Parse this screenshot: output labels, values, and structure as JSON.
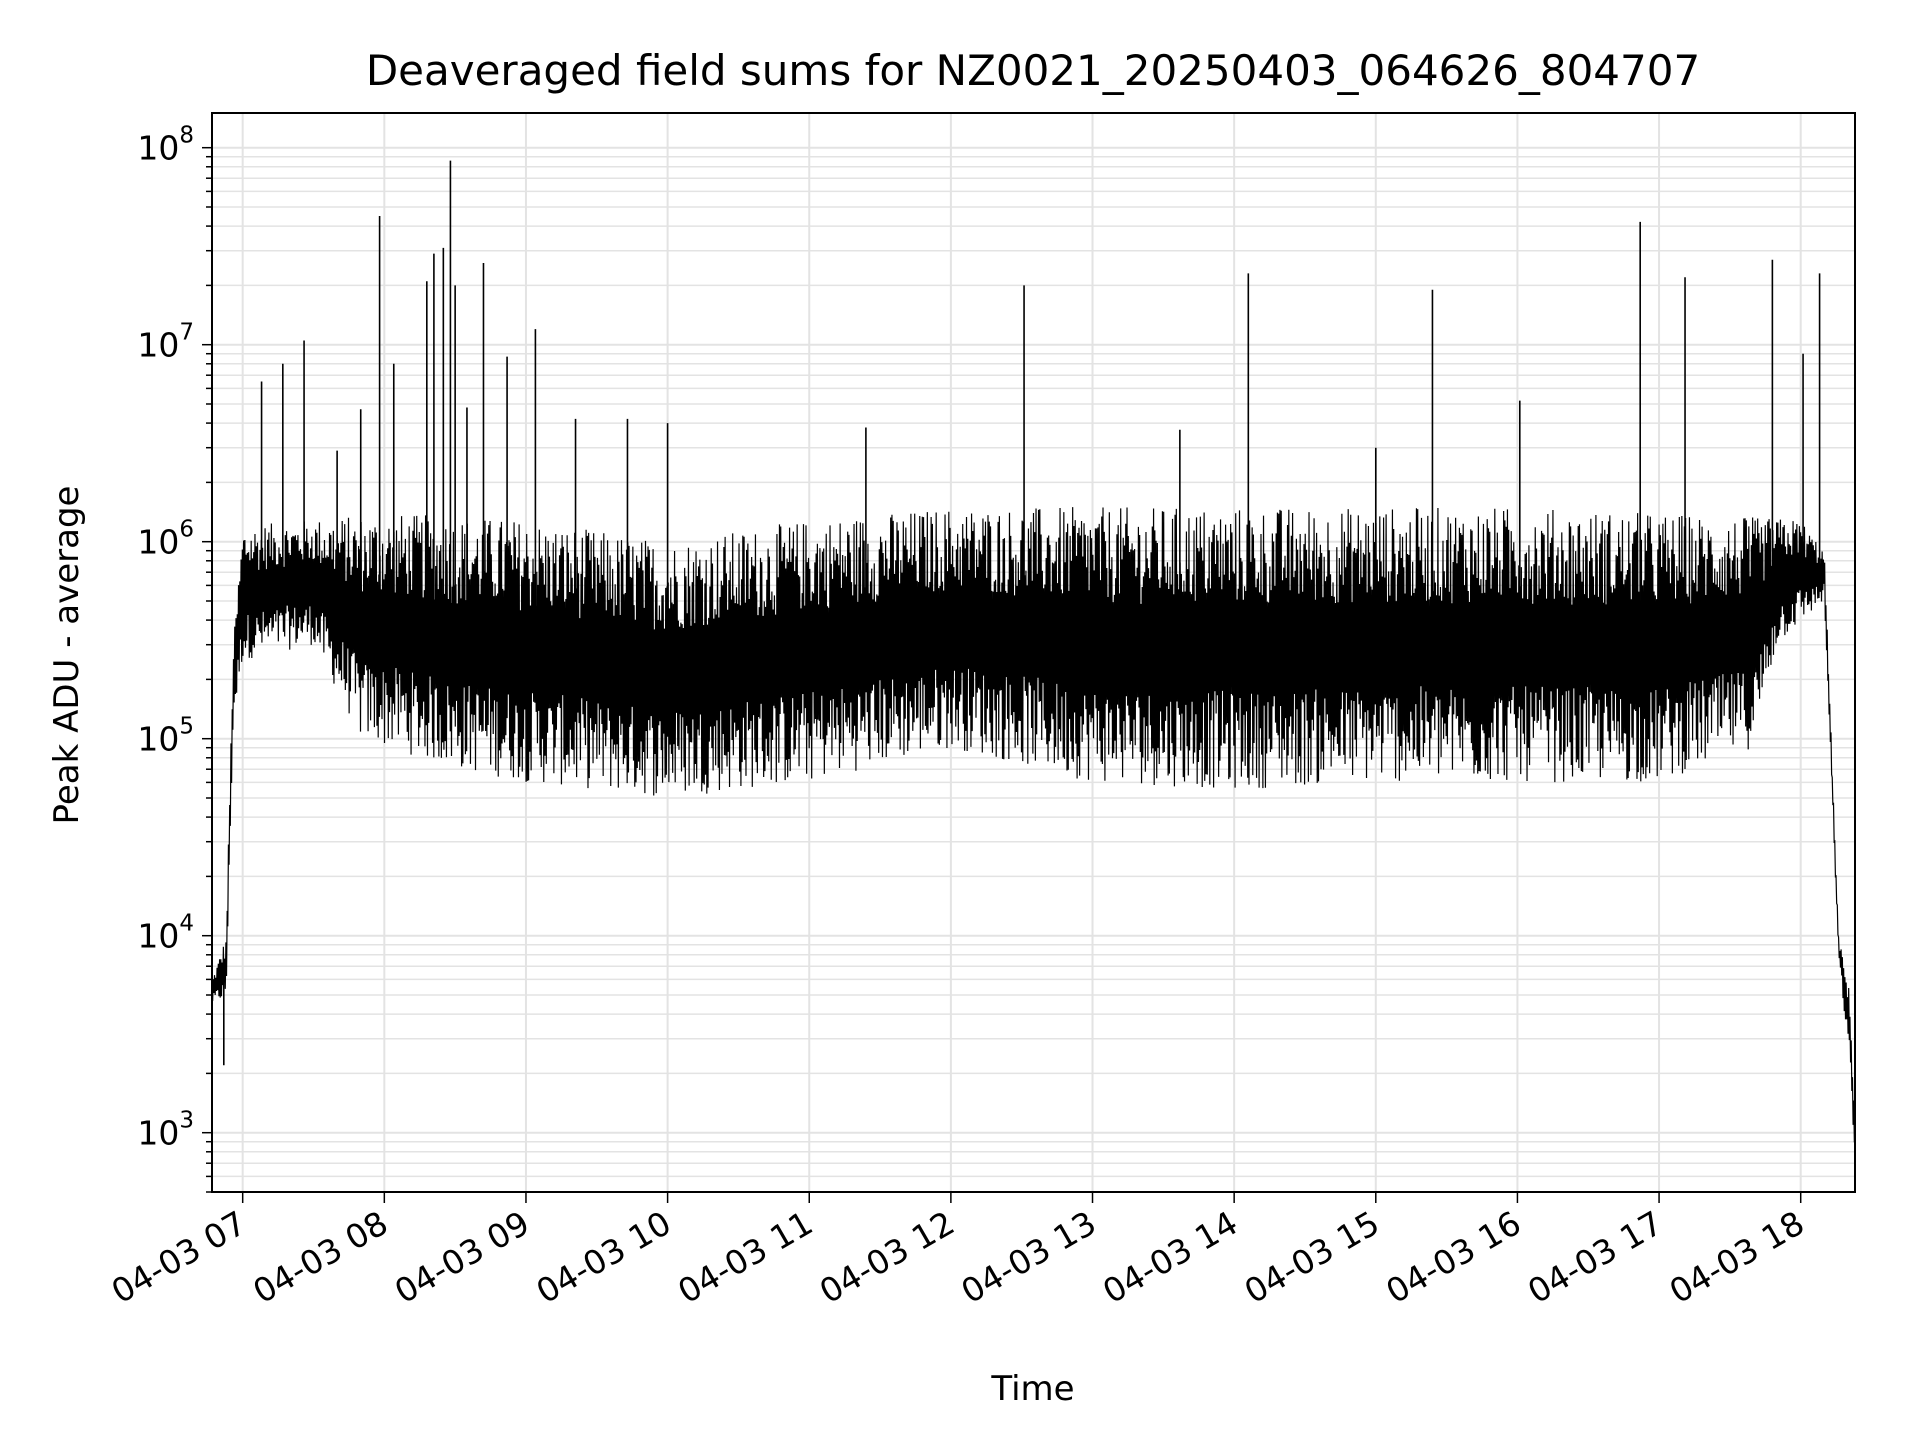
{
  "chart_data": {
    "type": "line",
    "title": "Deaveraged field sums for NZ0021_20250403_064626_804707",
    "xlabel": "Time",
    "ylabel": "Peak ADU - average",
    "yscale": "log",
    "ylim": [
      500,
      150000000
    ],
    "xlim": [
      "04-03 06:47",
      "04-03 18:23"
    ],
    "grid": true,
    "line_color": "#000000",
    "x_ticks": [
      "04-03 07",
      "04-03 08",
      "04-03 09",
      "04-03 10",
      "04-03 11",
      "04-03 12",
      "04-03 13",
      "04-03 14",
      "04-03 15",
      "04-03 16",
      "04-03 17",
      "04-03 18"
    ],
    "y_ticks": [
      {
        "base": "10",
        "exp": "3",
        "value": 1000
      },
      {
        "base": "10",
        "exp": "4",
        "value": 10000
      },
      {
        "base": "10",
        "exp": "5",
        "value": 100000
      },
      {
        "base": "10",
        "exp": "6",
        "value": 1000000
      },
      {
        "base": "10",
        "exp": "7",
        "value": 10000000
      },
      {
        "base": "10",
        "exp": "8",
        "value": 100000000
      }
    ],
    "series": [
      {
        "envelope_upper": [
          [
            "04-03 06:47",
            6000
          ],
          [
            "04-03 06:53",
            10000
          ],
          [
            "04-03 06:56",
            300000
          ],
          [
            "04-03 07:00",
            1200000
          ],
          [
            "04-03 07:30",
            1300000
          ],
          [
            "04-03 08:00",
            1400000
          ],
          [
            "04-03 09:00",
            1300000
          ],
          [
            "04-03 10:00",
            1000000
          ],
          [
            "04-03 11:00",
            1300000
          ],
          [
            "04-03 12:00",
            1500000
          ],
          [
            "04-03 13:00",
            1500000
          ],
          [
            "04-03 14:00",
            1500000
          ],
          [
            "04-03 15:00",
            1500000
          ],
          [
            "04-03 16:00",
            1500000
          ],
          [
            "04-03 17:00",
            1400000
          ],
          [
            "04-03 18:00",
            1300000
          ],
          [
            "04-03 18:10",
            900000
          ],
          [
            "04-03 18:16",
            10000
          ],
          [
            "04-03 18:21",
            5000
          ],
          [
            "04-03 18:23",
            1000
          ]
        ],
        "envelope_lower": [
          [
            "04-03 06:47",
            4500
          ],
          [
            "04-03 06:53",
            4800
          ],
          [
            "04-03 06:56",
            120000
          ],
          [
            "04-03 07:00",
            250000
          ],
          [
            "04-03 07:30",
            300000
          ],
          [
            "04-03 07:50",
            100000
          ],
          [
            "04-03 08:30",
            70000
          ],
          [
            "04-03 09:00",
            60000
          ],
          [
            "04-03 10:00",
            50000
          ],
          [
            "04-03 11:00",
            60000
          ],
          [
            "04-03 12:00",
            90000
          ],
          [
            "04-03 13:00",
            60000
          ],
          [
            "04-03 14:00",
            55000
          ],
          [
            "04-03 15:00",
            60000
          ],
          [
            "04-03 16:00",
            60000
          ],
          [
            "04-03 17:00",
            60000
          ],
          [
            "04-03 17:40",
            90000
          ],
          [
            "04-03 17:50",
            300000
          ],
          [
            "04-03 18:10",
            500000
          ],
          [
            "04-03 18:16",
            8000
          ],
          [
            "04-03 18:21",
            2000
          ],
          [
            "04-03 18:23",
            700
          ]
        ],
        "spikes": [
          [
            "04-03 06:52",
            2200
          ],
          [
            "04-03 07:08",
            6500000
          ],
          [
            "04-03 07:17",
            8000000
          ],
          [
            "04-03 07:26",
            10500000
          ],
          [
            "04-03 07:40",
            2900000
          ],
          [
            "04-03 07:50",
            4700000
          ],
          [
            "04-03 07:58",
            45000000
          ],
          [
            "04-03 08:04",
            8000000
          ],
          [
            "04-03 08:18",
            21000000
          ],
          [
            "04-03 08:21",
            29000000
          ],
          [
            "04-03 08:25",
            31000000
          ],
          [
            "04-03 08:28",
            86000000
          ],
          [
            "04-03 08:30",
            20000000
          ],
          [
            "04-03 08:35",
            4800000
          ],
          [
            "04-03 08:42",
            26000000
          ],
          [
            "04-03 08:52",
            8700000
          ],
          [
            "04-03 09:04",
            12000000
          ],
          [
            "04-03 09:21",
            4200000
          ],
          [
            "04-03 09:43",
            4200000
          ],
          [
            "04-03 10:00",
            4000000
          ],
          [
            "04-03 11:24",
            3800000
          ],
          [
            "04-03 12:31",
            20000000
          ],
          [
            "04-03 13:37",
            3700000
          ],
          [
            "04-03 14:06",
            23000000
          ],
          [
            "04-03 15:00",
            3000000
          ],
          [
            "04-03 15:24",
            19000000
          ],
          [
            "04-03 16:01",
            5200000
          ],
          [
            "04-03 16:52",
            42000000
          ],
          [
            "04-03 17:11",
            22000000
          ],
          [
            "04-03 17:48",
            27000000
          ],
          [
            "04-03 18:01",
            9000000
          ],
          [
            "04-03 18:08",
            23000000
          ]
        ]
      }
    ]
  }
}
